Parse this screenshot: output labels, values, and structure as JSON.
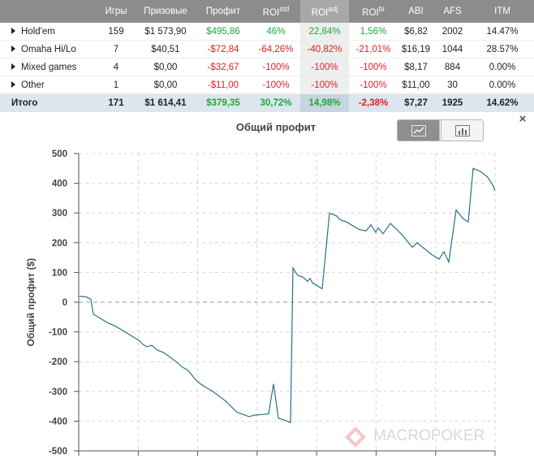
{
  "table": {
    "headers": {
      "games": "Игры",
      "prize": "Призовые",
      "profit": "Профит",
      "roi_std": "ROI",
      "roi_std_sup": "std",
      "roi_adj": "ROI",
      "roi_adj_sup": "adj",
      "roi_bi": "ROI",
      "roi_bi_sup": "bi",
      "abi": "ABI",
      "afs": "AFS",
      "itm": "ITM"
    },
    "rows": [
      {
        "name": "Hold'em",
        "games": "159",
        "prize": "$1 573,90",
        "profit": "$495,86",
        "roi_std": "46%",
        "roi_adj": "22,84%",
        "roi_bi": "1,56%",
        "abi": "$6,82",
        "afs": "2002",
        "itm": "14.47%"
      },
      {
        "name": "Omaha Hi/Lo",
        "games": "7",
        "prize": "$40,51",
        "profit": "-$72,84",
        "roi_std": "-64,26%",
        "roi_adj": "-40,82%",
        "roi_bi": "-21,01%",
        "abi": "$16,19",
        "afs": "1044",
        "itm": "28.57%"
      },
      {
        "name": "Mixed games",
        "games": "4",
        "prize": "$0,00",
        "profit": "-$32,67",
        "roi_std": "-100%",
        "roi_adj": "-100%",
        "roi_bi": "-100%",
        "abi": "$8,17",
        "afs": "884",
        "itm": "0.00%"
      },
      {
        "name": "Other",
        "games": "1",
        "prize": "$0,00",
        "profit": "-$11,00",
        "roi_std": "-100%",
        "roi_adj": "-100%",
        "roi_bi": "-100%",
        "abi": "$11,00",
        "afs": "30",
        "itm": "0.00%"
      }
    ],
    "total": {
      "name": "Итого",
      "games": "171",
      "prize": "$1 614,41",
      "profit": "$379,35",
      "roi_std": "30,72%",
      "roi_adj": "14,98%",
      "roi_bi": "-2,38%",
      "abi": "$7,27",
      "afs": "1925",
      "itm": "14.62%"
    }
  },
  "chart_toolbar": {
    "close_glyph": "×",
    "line_view_icon": "line-chart-icon",
    "bar_view_icon": "bar-chart-icon"
  },
  "watermark": {
    "text": "MACROPOKER"
  },
  "colors": {
    "positive": "#1fa83a",
    "negative": "#e01f1f",
    "line": "#2a7089",
    "header_bg": "#8c8c8c"
  },
  "chart_data": {
    "type": "line",
    "title": "Общий профит",
    "ylabel": "Общий профит ($)",
    "xlabel": "",
    "ylim": [
      -500,
      500
    ],
    "yticks": [
      500,
      400,
      300,
      200,
      100,
      0,
      -100,
      -200,
      -300,
      -400,
      -500
    ],
    "xlim": [
      0,
      171
    ],
    "grid": true,
    "series": [
      {
        "x": [
          0,
          3,
          5,
          6,
          8,
          12,
          15,
          20,
          25,
          26,
          28,
          30,
          32,
          35,
          40,
          42,
          45,
          48,
          50,
          55,
          60,
          65,
          70,
          72,
          75,
          78,
          80,
          82,
          85,
          87,
          88,
          90,
          92,
          94,
          95,
          96,
          100,
          103,
          106,
          107,
          108,
          110,
          115,
          118,
          120,
          122,
          123,
          125,
          128,
          130,
          133,
          135,
          137,
          139,
          142,
          145,
          148,
          150,
          152,
          155,
          158,
          160,
          162,
          165,
          168,
          170,
          171
        ],
        "y": [
          20,
          18,
          10,
          -40,
          -50,
          -70,
          -80,
          -105,
          -130,
          -140,
          -150,
          -145,
          -160,
          -170,
          -200,
          -215,
          -230,
          -260,
          -275,
          -300,
          -330,
          -370,
          -385,
          -380,
          -378,
          -375,
          -275,
          -390,
          -398,
          -405,
          115,
          90,
          85,
          70,
          80,
          65,
          45,
          300,
          290,
          280,
          275,
          270,
          245,
          240,
          260,
          235,
          250,
          230,
          265,
          250,
          225,
          205,
          185,
          200,
          180,
          160,
          145,
          170,
          135,
          310,
          280,
          270,
          450,
          440,
          420,
          395,
          375
        ]
      }
    ]
  }
}
